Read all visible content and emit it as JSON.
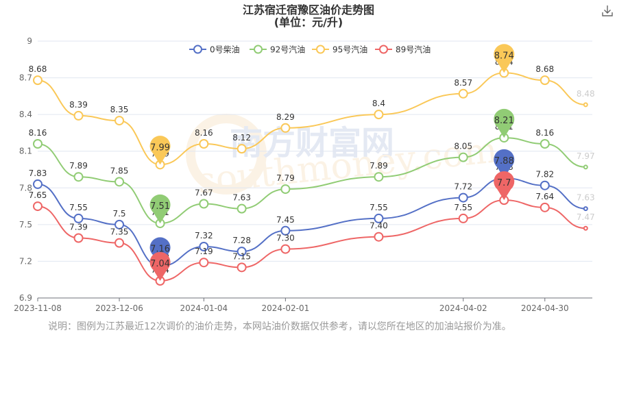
{
  "toolbar": {
    "download_icon": "download-icon"
  },
  "note": "说明：图例为江苏最近12次调价的油价走势，本网站油价数据仅供参考，请以您所在地区的加油站报价为准。",
  "watermark": {
    "cn": "南方财富网",
    "en": "southmoney.com"
  },
  "chart_data": {
    "type": "line",
    "title": "江苏宿迁宿豫区油价走势图",
    "subtitle": "(单位：元/升)",
    "xlabel": "",
    "ylabel": "",
    "x": [
      "2023-11-08",
      "2023-11-22",
      "2023-12-06",
      "2023-12-20",
      "2024-01-04",
      "2024-01-17",
      "2024-02-01",
      "2024-03-04",
      "2024-04-02",
      "2024-04-16",
      "2024-04-30",
      "2024-05-14"
    ],
    "x_tick_labels": [
      "2023-11-08",
      "2023-12-06",
      "2024-01-04",
      "2024-02-01",
      "2024-04-02",
      "2024-04-30"
    ],
    "y_ticks": [
      6.9,
      7.2,
      7.5,
      7.8,
      8.1,
      8.4,
      8.7,
      9
    ],
    "y_tick_labels": [
      "6.9",
      "7.2",
      "7.5",
      "7.8",
      "8.1",
      "8.4",
      "8.7",
      "9"
    ],
    "ylim": [
      6.9,
      9
    ],
    "grid": true,
    "legend_position": "top",
    "series": [
      {
        "name": "0号柴油",
        "color": "#5470c6",
        "values": [
          7.83,
          7.55,
          7.5,
          7.16,
          7.32,
          7.28,
          7.45,
          7.55,
          7.72,
          7.88,
          7.82,
          7.63
        ],
        "labels": [
          "7.83",
          "7.55",
          "7.5",
          "7.16",
          "7.32",
          "7.28",
          "7.45",
          "7.55",
          "7.72",
          "7.88",
          "7.82",
          "7.63"
        ],
        "max_pin": "7.88",
        "min_pin": "7.16"
      },
      {
        "name": "92号汽油",
        "color": "#91cc75",
        "values": [
          8.16,
          7.89,
          7.85,
          7.51,
          7.67,
          7.63,
          7.79,
          7.89,
          8.05,
          8.21,
          8.16,
          7.97
        ],
        "labels": [
          "8.16",
          "7.89",
          "7.85",
          "7.51",
          "7.67",
          "7.63",
          "7.79",
          "7.89",
          "8.05",
          "8.21",
          "8.16",
          "7.97"
        ],
        "max_pin": "8.21",
        "min_pin": "7.51"
      },
      {
        "name": "95号汽油",
        "color": "#fac858",
        "values": [
          8.68,
          8.39,
          8.35,
          7.99,
          8.16,
          8.12,
          8.29,
          8.4,
          8.57,
          8.74,
          8.68,
          8.48
        ],
        "labels": [
          "8.68",
          "8.39",
          "8.35",
          "7.99",
          "8.16",
          "8.12",
          "8.29",
          "8.4",
          "8.57",
          "8.74",
          "8.68",
          "8.48"
        ],
        "max_pin": "8.74",
        "min_pin": "7.99"
      },
      {
        "name": "89号汽油",
        "color": "#ee6666",
        "values": [
          7.65,
          7.39,
          7.35,
          7.04,
          7.19,
          7.15,
          7.3,
          7.4,
          7.55,
          7.7,
          7.64,
          7.47
        ],
        "labels": [
          "7.65",
          "7.39",
          "7.35",
          "7.04",
          "7.19",
          "7.15",
          "7.30",
          "7.40",
          "7.55",
          "7.7",
          "7.64",
          "7.47"
        ],
        "max_pin": "7.7",
        "min_pin": "7.04"
      }
    ]
  }
}
